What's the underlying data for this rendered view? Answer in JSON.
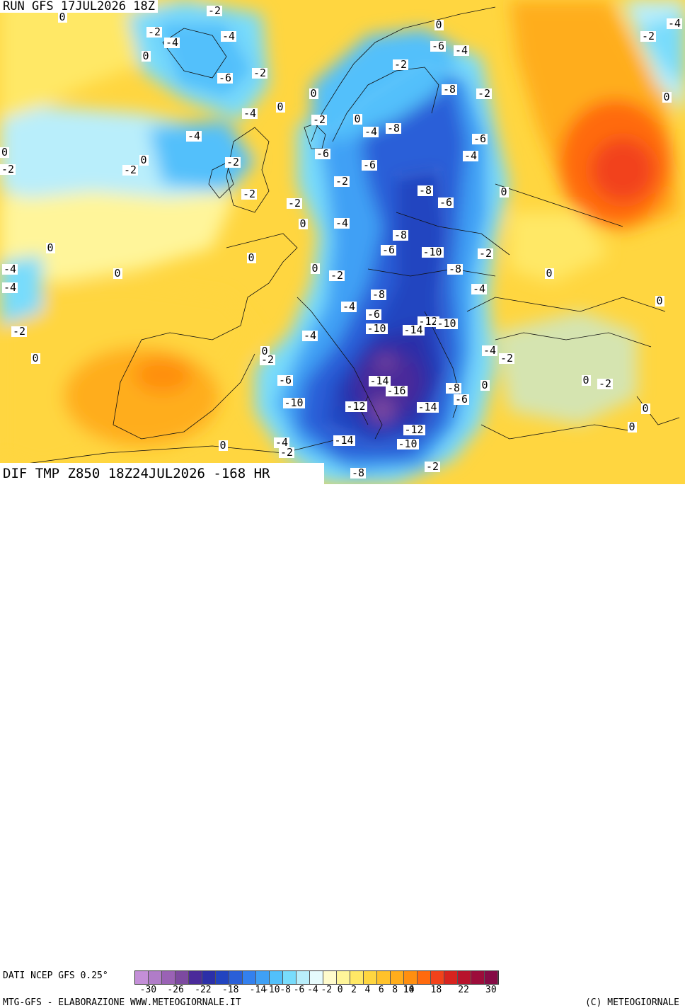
{
  "header": {
    "run": "RUN GFS 17JUL2026 18Z"
  },
  "footer_title": "DIF TMP Z850 18Z24JUL2026 -168 HR",
  "legend": {
    "source": "DATI NCEP GFS 0.25°",
    "credit_left": "MTG-GFS - ELABORAZIONE WWW.METEOGIORNALE.IT",
    "credit_right": "(C) METEOGIORNALE",
    "tick_labels": [
      "-30",
      "-26",
      "-22",
      "-18",
      "-14",
      "-10",
      "-8",
      "-6",
      "-4",
      "-2",
      "0",
      "2",
      "4",
      "6",
      "8",
      "10",
      "14",
      "18",
      "22",
      "30"
    ],
    "colors": [
      "#c48fd8",
      "#b07cc8",
      "#9a62b5",
      "#7d4aa0",
      "#4a2a9a",
      "#2b2fa8",
      "#2244c0",
      "#2a5fd8",
      "#3380ee",
      "#3fa0f5",
      "#52c0fb",
      "#78dcfc",
      "#b9eefb",
      "#e6fbfd",
      "#fffbcc",
      "#fff59a",
      "#ffe866",
      "#ffd640",
      "#ffc22a",
      "#ffad1c",
      "#ff8f10",
      "#ff6a0e",
      "#f2421a",
      "#d7231f",
      "#b8132c",
      "#9c0d3a",
      "#850b45"
    ]
  },
  "map_labels": [
    {
      "text": "-2",
      "pos": [
        303,
        16
      ]
    },
    {
      "text": "0",
      "pos": [
        88,
        25
      ]
    },
    {
      "text": "-2",
      "pos": [
        218,
        46
      ]
    },
    {
      "text": "-4",
      "pos": [
        323,
        52
      ]
    },
    {
      "text": "-4",
      "pos": [
        243,
        61
      ]
    },
    {
      "text": "0",
      "pos": [
        620,
        36
      ]
    },
    {
      "text": "-4",
      "pos": [
        953,
        34
      ]
    },
    {
      "text": "-2",
      "pos": [
        916,
        52
      ]
    },
    {
      "text": "-6",
      "pos": [
        619,
        66
      ]
    },
    {
      "text": "-4",
      "pos": [
        652,
        72
      ]
    },
    {
      "text": "0",
      "pos": [
        206,
        80
      ]
    },
    {
      "text": "-2",
      "pos": [
        566,
        92
      ]
    },
    {
      "text": "-2",
      "pos": [
        367,
        104
      ]
    },
    {
      "text": "-6",
      "pos": [
        318,
        111
      ]
    },
    {
      "text": "-8",
      "pos": [
        635,
        127
      ]
    },
    {
      "text": "-2",
      "pos": [
        684,
        133
      ]
    },
    {
      "text": "0",
      "pos": [
        443,
        133
      ]
    },
    {
      "text": "0",
      "pos": [
        942,
        138
      ]
    },
    {
      "text": "0",
      "pos": [
        396,
        152
      ]
    },
    {
      "text": "-4",
      "pos": [
        353,
        161
      ]
    },
    {
      "text": "-2",
      "pos": [
        451,
        170
      ]
    },
    {
      "text": "0",
      "pos": [
        505,
        169
      ]
    },
    {
      "text": "-8",
      "pos": [
        556,
        182
      ]
    },
    {
      "text": "-4",
      "pos": [
        524,
        187
      ]
    },
    {
      "text": "-4",
      "pos": [
        274,
        193
      ]
    },
    {
      "text": "-6",
      "pos": [
        678,
        197
      ]
    },
    {
      "text": "0",
      "pos": [
        4,
        216
      ]
    },
    {
      "text": "-6",
      "pos": [
        456,
        218
      ]
    },
    {
      "text": "-4",
      "pos": [
        665,
        221
      ]
    },
    {
      "text": "0",
      "pos": [
        203,
        227
      ]
    },
    {
      "text": "-2",
      "pos": [
        329,
        230
      ]
    },
    {
      "text": "-6",
      "pos": [
        522,
        234
      ]
    },
    {
      "text": "-2",
      "pos": [
        9,
        240
      ]
    },
    {
      "text": "-2",
      "pos": [
        184,
        241
      ]
    },
    {
      "text": "-2",
      "pos": [
        483,
        257
      ]
    },
    {
      "text": "-8",
      "pos": [
        601,
        270
      ]
    },
    {
      "text": "0",
      "pos": [
        712,
        272
      ]
    },
    {
      "text": "-2",
      "pos": [
        352,
        275
      ]
    },
    {
      "text": "-6",
      "pos": [
        630,
        287
      ]
    },
    {
      "text": "-2",
      "pos": [
        416,
        288
      ]
    },
    {
      "text": "-4",
      "pos": [
        483,
        316
      ]
    },
    {
      "text": "0",
      "pos": [
        428,
        317
      ]
    },
    {
      "text": "-8",
      "pos": [
        566,
        333
      ]
    },
    {
      "text": "0",
      "pos": [
        71,
        351
      ]
    },
    {
      "text": "-6",
      "pos": [
        549,
        354
      ]
    },
    {
      "text": "-10",
      "pos": [
        611,
        357
      ]
    },
    {
      "text": "-2",
      "pos": [
        686,
        359
      ]
    },
    {
      "text": "0",
      "pos": [
        355,
        365
      ]
    },
    {
      "text": "-4",
      "pos": [
        14,
        381
      ]
    },
    {
      "text": "-8",
      "pos": [
        643,
        381
      ]
    },
    {
      "text": "0",
      "pos": [
        445,
        380
      ]
    },
    {
      "text": "0",
      "pos": [
        166,
        387
      ]
    },
    {
      "text": "0",
      "pos": [
        776,
        387
      ]
    },
    {
      "text": "-2",
      "pos": [
        476,
        390
      ]
    },
    {
      "text": "-4",
      "pos": [
        14,
        407
      ]
    },
    {
      "text": "-4",
      "pos": [
        677,
        409
      ]
    },
    {
      "text": "-8",
      "pos": [
        535,
        417
      ]
    },
    {
      "text": "0",
      "pos": [
        932,
        426
      ]
    },
    {
      "text": "-4",
      "pos": [
        493,
        434
      ]
    },
    {
      "text": "-6",
      "pos": [
        528,
        445
      ]
    },
    {
      "text": "-12",
      "pos": [
        605,
        455
      ]
    },
    {
      "text": "-10",
      "pos": [
        631,
        458
      ]
    },
    {
      "text": "-10",
      "pos": [
        532,
        465
      ]
    },
    {
      "text": "-14",
      "pos": [
        584,
        467
      ]
    },
    {
      "text": "-2",
      "pos": [
        27,
        469
      ]
    },
    {
      "text": "-4",
      "pos": [
        438,
        475
      ]
    },
    {
      "text": "-4",
      "pos": [
        692,
        496
      ]
    },
    {
      "text": "0",
      "pos": [
        374,
        497
      ]
    },
    {
      "text": "0",
      "pos": [
        50,
        507
      ]
    },
    {
      "text": "-2",
      "pos": [
        378,
        509
      ]
    },
    {
      "text": "-2",
      "pos": [
        716,
        507
      ]
    },
    {
      "text": "-6",
      "pos": [
        403,
        538
      ]
    },
    {
      "text": "-14",
      "pos": [
        536,
        539
      ]
    },
    {
      "text": "0",
      "pos": [
        828,
        538
      ]
    },
    {
      "text": "-2",
      "pos": [
        855,
        543
      ]
    },
    {
      "text": "-8",
      "pos": [
        641,
        549
      ]
    },
    {
      "text": "-16",
      "pos": [
        560,
        553
      ]
    },
    {
      "text": "0",
      "pos": [
        685,
        545
      ]
    },
    {
      "text": "-6",
      "pos": [
        652,
        565
      ]
    },
    {
      "text": "-10",
      "pos": [
        415,
        570
      ]
    },
    {
      "text": "-12",
      "pos": [
        503,
        575
      ]
    },
    {
      "text": "-14",
      "pos": [
        604,
        576
      ]
    },
    {
      "text": "0",
      "pos": [
        912,
        578
      ]
    },
    {
      "text": "-12",
      "pos": [
        585,
        608
      ]
    },
    {
      "text": "0",
      "pos": [
        893,
        604
      ]
    },
    {
      "text": "-4",
      "pos": [
        398,
        626
      ]
    },
    {
      "text": "-14",
      "pos": [
        486,
        623
      ]
    },
    {
      "text": "-10",
      "pos": [
        576,
        628
      ]
    },
    {
      "text": "0",
      "pos": [
        315,
        630
      ]
    },
    {
      "text": "-2",
      "pos": [
        405,
        640
      ]
    },
    {
      "text": "-2",
      "pos": [
        611,
        660
      ]
    },
    {
      "text": "-8",
      "pos": [
        506,
        669
      ]
    }
  ]
}
